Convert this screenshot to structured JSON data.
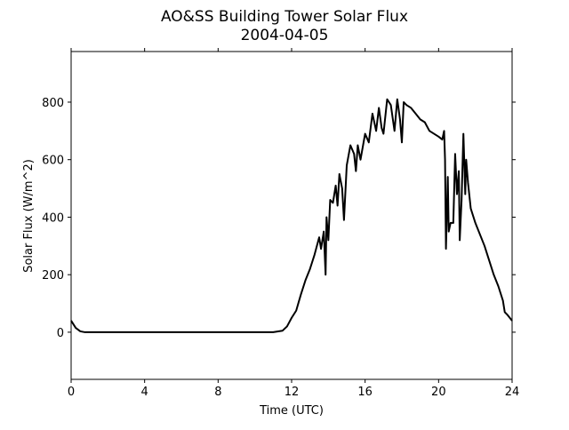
{
  "chart_data": {
    "type": "line",
    "title": "AO&SS Building Tower Solar Flux",
    "subtitle": "2004-04-05",
    "x_label": "Time (UTC)",
    "y_label": "Solar Flux (W/m^2)",
    "x": [
      0,
      0.25,
      0.5,
      0.75,
      1,
      2,
      3,
      4,
      5,
      6,
      7,
      8,
      9,
      10,
      11,
      11.5,
      11.75,
      12,
      12.25,
      12.5,
      12.75,
      13,
      13.25,
      13.5,
      13.6,
      13.75,
      13.85,
      13.9,
      14,
      14.1,
      14.25,
      14.4,
      14.5,
      14.6,
      14.75,
      14.85,
      15,
      15.2,
      15.4,
      15.5,
      15.6,
      15.75,
      16,
      16.2,
      16.4,
      16.6,
      16.75,
      16.9,
      17,
      17.2,
      17.4,
      17.6,
      17.75,
      17.9,
      18,
      18.1,
      18.25,
      18.5,
      18.75,
      19,
      19.25,
      19.5,
      20,
      20.2,
      20.3,
      20.35,
      20.4,
      20.5,
      20.55,
      20.65,
      20.8,
      20.9,
      21,
      21.1,
      21.15,
      21.25,
      21.35,
      21.45,
      21.5,
      21.6,
      21.75,
      22,
      22.5,
      23,
      23.25,
      23.5,
      23.6,
      23.75,
      24
    ],
    "series": [
      {
        "name": "Solar Flux",
        "color": "#000000",
        "values": [
          40,
          15,
          3,
          0,
          0,
          0,
          0,
          0,
          0,
          0,
          0,
          0,
          0,
          0,
          0,
          5,
          20,
          50,
          75,
          130,
          180,
          220,
          270,
          330,
          290,
          350,
          200,
          400,
          320,
          460,
          450,
          510,
          440,
          550,
          500,
          390,
          580,
          650,
          620,
          560,
          650,
          600,
          690,
          660,
          760,
          700,
          780,
          710,
          690,
          810,
          790,
          700,
          810,
          740,
          660,
          800,
          790,
          780,
          760,
          740,
          730,
          700,
          680,
          670,
          700,
          600,
          290,
          540,
          350,
          380,
          380,
          620,
          480,
          560,
          320,
          460,
          690,
          480,
          600,
          520,
          430,
          380,
          300,
          200,
          160,
          110,
          70,
          60,
          40
        ]
      }
    ],
    "xlim": [
      0,
      24
    ],
    "xticks": [
      0,
      4,
      8,
      12,
      16,
      20,
      24
    ],
    "ylim": [
      -164,
      976
    ],
    "yticks": [
      0,
      200,
      400,
      600,
      800
    ]
  }
}
